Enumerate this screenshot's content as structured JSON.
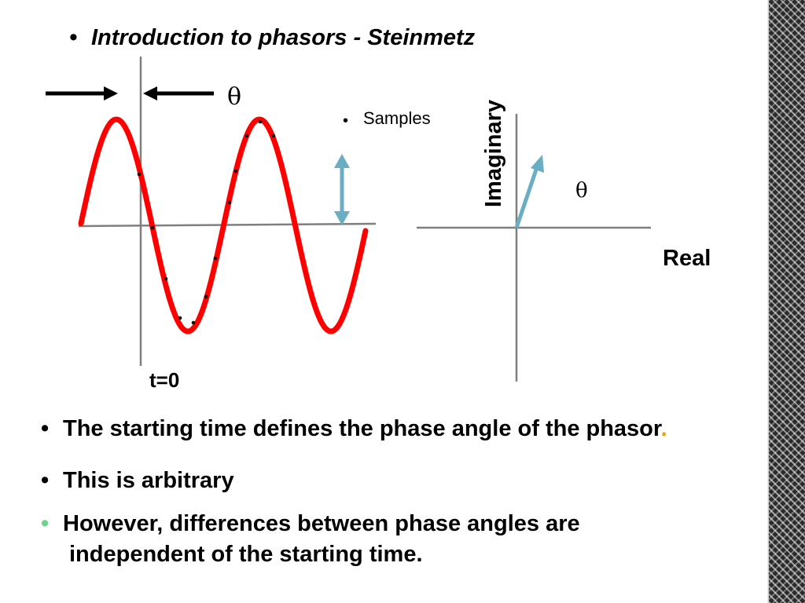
{
  "slide": {
    "title": "Introduction to phasors - Steinmetz",
    "bullets": [
      {
        "text": "The starting time defines the phase angle of the phasor",
        "suffix": "."
      },
      {
        "text": "This is arbitrary"
      },
      {
        "text": "However, differences between phase angles are",
        "continuation": "independent of the starting time."
      }
    ],
    "bullet_marker": "•"
  },
  "diagram": {
    "theta_label_left": "θ",
    "theta_label_right": "θ",
    "t0_label": "t=0",
    "samples_label": "Samples",
    "samples_marker": "•",
    "imaginary_label": "Imaginary",
    "real_label": "Real",
    "colors": {
      "sine": "#ff0000",
      "amplitude_arrow": "#6aaec4",
      "phasor": "#6aaec4",
      "axes": "#7f7f7f",
      "third_bullet_marker": "#6fd38a",
      "period_accent": "#e8a200"
    }
  }
}
